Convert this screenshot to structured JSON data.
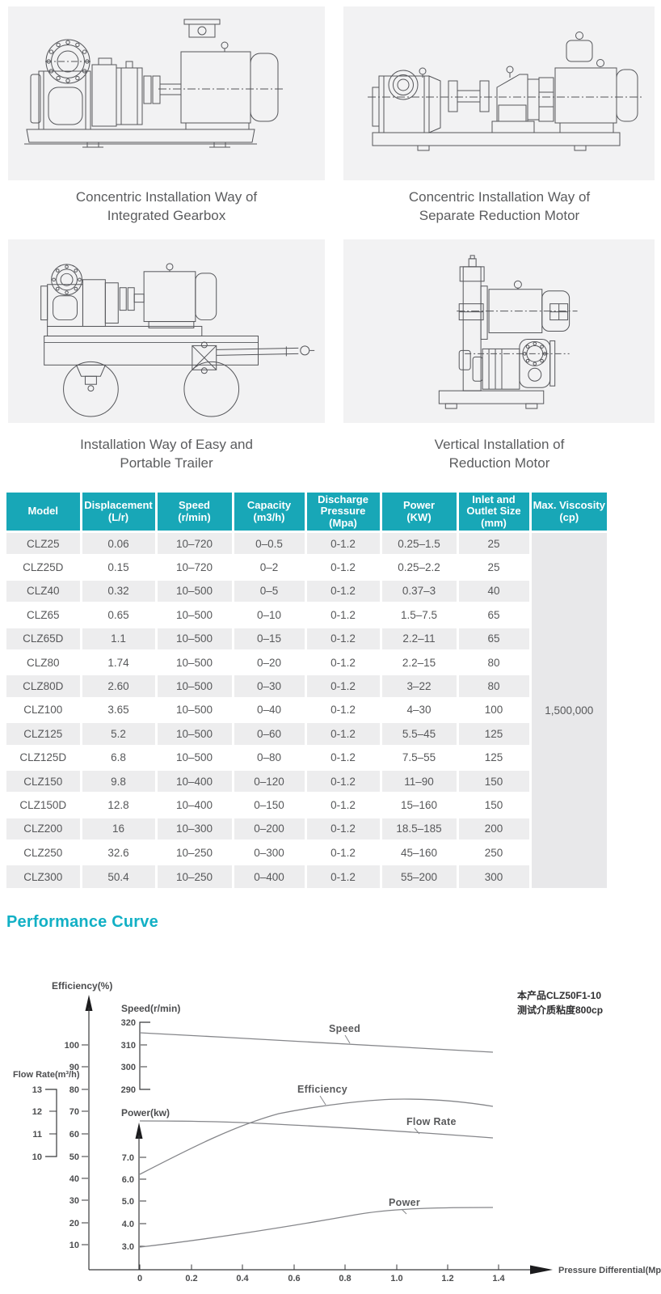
{
  "colors": {
    "accent_teal_header": "#18a7b7",
    "accent_teal_heading": "#12b0c5",
    "panel_bg": "#f2f2f3",
    "row_gray": "#ededee",
    "text_gray": "#57585a"
  },
  "installation": {
    "figures": [
      {
        "drawing": "concentric-integrated-gearbox",
        "caption_line1": "Concentric Installation Way of",
        "caption_line2": "Integrated Gearbox"
      },
      {
        "drawing": "concentric-separate-reduction-motor",
        "caption_line1": "Concentric Installation Way of",
        "caption_line2": "Separate Reduction Motor"
      },
      {
        "drawing": "easy-portable-trailer",
        "caption_line1": "Installation Way of Easy and",
        "caption_line2": "Portable Trailer"
      },
      {
        "drawing": "vertical-reduction-motor",
        "caption_line1": "Vertical Installation of",
        "caption_line2": "Reduction Motor"
      }
    ]
  },
  "spec_table": {
    "header": [
      [
        "Model"
      ],
      [
        "Displacement",
        "(L/r)"
      ],
      [
        "Speed",
        "(r/min)"
      ],
      [
        "Capacity",
        "(m3/h)"
      ],
      [
        "Discharge",
        "Pressure",
        "(Mpa)"
      ],
      [
        "Power",
        "(KW)"
      ],
      [
        "Inlet and",
        "Outlet Size",
        "(mm)"
      ],
      [
        "Max. Viscosity",
        "(cp)"
      ]
    ],
    "rows": [
      [
        "CLZ25",
        "0.06",
        "10–720",
        "0–0.5",
        "0-1.2",
        "0.25–1.5",
        "25"
      ],
      [
        "CLZ25D",
        "0.15",
        "10–720",
        "0–2",
        "0-1.2",
        "0.25–2.2",
        "25"
      ],
      [
        "CLZ40",
        "0.32",
        "10–500",
        "0–5",
        "0-1.2",
        "0.37–3",
        "40"
      ],
      [
        "CLZ65",
        "0.65",
        "10–500",
        "0–10",
        "0-1.2",
        "1.5–7.5",
        "65"
      ],
      [
        "CLZ65D",
        "1.1",
        "10–500",
        "0–15",
        "0-1.2",
        "2.2–11",
        "65"
      ],
      [
        "CLZ80",
        "1.74",
        "10–500",
        "0–20",
        "0-1.2",
        "2.2–15",
        "80"
      ],
      [
        "CLZ80D",
        "2.60",
        "10–500",
        "0–30",
        "0-1.2",
        "3–22",
        "80"
      ],
      [
        "CLZ100",
        "3.65",
        "10–500",
        "0–40",
        "0-1.2",
        "4–30",
        "100"
      ],
      [
        "CLZ125",
        "5.2",
        "10–500",
        "0–60",
        "0-1.2",
        "5.5–45",
        "125"
      ],
      [
        "CLZ125D",
        "6.8",
        "10–500",
        "0–80",
        "0-1.2",
        "7.5–55",
        "125"
      ],
      [
        "CLZ150",
        "9.8",
        "10–400",
        "0–120",
        "0-1.2",
        "11–90",
        "150"
      ],
      [
        "CLZ150D",
        "12.8",
        "10–400",
        "0–150",
        "0-1.2",
        "15–160",
        "150"
      ],
      [
        "CLZ200",
        "16",
        "10–300",
        "0–200",
        "0-1.2",
        "18.5–185",
        "200"
      ],
      [
        "CLZ250",
        "32.6",
        "10–250",
        "0–300",
        "0-1.2",
        "45–160",
        "250"
      ],
      [
        "CLZ300",
        "50.4",
        "10–250",
        "0–400",
        "0-1.2",
        "55–200",
        "300"
      ]
    ],
    "max_viscosity": "1,500,000"
  },
  "chart_data": {
    "type": "line",
    "title": "Performance Curve",
    "grid": false,
    "legend_position": "inline-labels",
    "x_axis": {
      "label": "Pressure Differential(Mpa)",
      "range": [
        0,
        1.4
      ],
      "tick_labels": [
        "0",
        "0.2",
        "0.4",
        "0.6",
        "0.8",
        "1.0",
        "1.2",
        "1.4"
      ]
    },
    "y_axes": [
      {
        "name": "Efficiency(%)",
        "tick_labels": [
          "100",
          "90",
          "80",
          "70",
          "60",
          "50",
          "40",
          "30",
          "20",
          "10"
        ]
      },
      {
        "name": "Flow Rate(m³/h)",
        "tick_labels": [
          "13",
          "12",
          "11",
          "10"
        ]
      },
      {
        "name": "Speed(r/min)",
        "tick_labels": [
          "320",
          "310",
          "300",
          "290"
        ]
      },
      {
        "name": "Power(kw)",
        "tick_labels": [
          "7.0",
          "6.0",
          "5.0",
          "4.0",
          "3.0"
        ]
      }
    ],
    "series": [
      {
        "name": "Speed",
        "unit": "r/min",
        "x": [
          0,
          0.2,
          0.4,
          0.6,
          0.8,
          1.0,
          1.2,
          1.4
        ],
        "values": [
          316,
          315,
          313.5,
          312,
          311,
          309.5,
          308,
          307
        ]
      },
      {
        "name": "Efficiency",
        "unit": "%",
        "x": [
          0,
          0.2,
          0.4,
          0.6,
          0.8,
          1.0,
          1.2,
          1.4
        ],
        "values": [
          42,
          54,
          63,
          69,
          73,
          75,
          75,
          72.5
        ]
      },
      {
        "name": "Flow Rate",
        "unit": "m³/h",
        "x": [
          0,
          0.2,
          0.4,
          0.6,
          0.8,
          1.0,
          1.2,
          1.4
        ],
        "values": [
          11.6,
          11.6,
          11.5,
          11.4,
          11.25,
          11.1,
          10.95,
          10.85
        ]
      },
      {
        "name": "Power",
        "unit": "kw",
        "x": [
          0,
          0.2,
          0.4,
          0.6,
          0.8,
          1.0,
          1.2,
          1.4
        ],
        "values": [
          3.0,
          3.3,
          3.6,
          3.95,
          4.3,
          4.55,
          4.7,
          4.7
        ]
      }
    ],
    "annotation": [
      "本产品CLZ50F1-10",
      "测试介质粘度800cp"
    ]
  }
}
